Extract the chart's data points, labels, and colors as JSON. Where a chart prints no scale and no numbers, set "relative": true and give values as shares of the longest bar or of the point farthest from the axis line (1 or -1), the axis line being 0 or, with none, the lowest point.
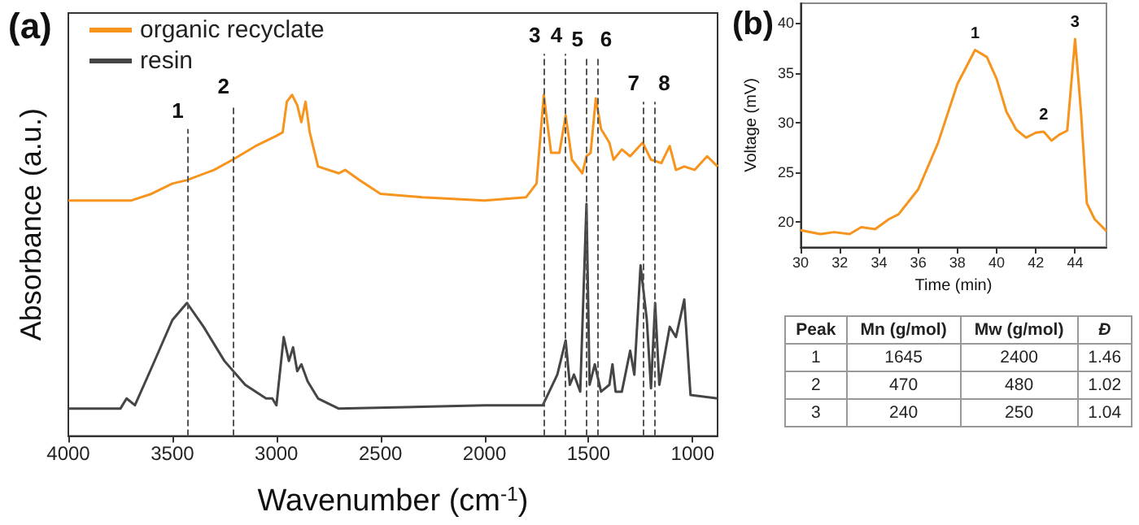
{
  "chart_data": [
    {
      "type": "line",
      "title": "(a)",
      "xlabel": "Wavenumber (cm$^{-1}$)",
      "ylabel": "Absorbance (a.u.)",
      "relative": true,
      "xlim": [
        4000,
        880
      ],
      "xticks": [
        4000,
        3500,
        3000,
        2500,
        2000,
        1500,
        1000
      ],
      "legend": "top left",
      "grid": false,
      "series": [
        {
          "name": "organic recyclate",
          "color": "#f7941d",
          "x": [
            4000,
            3700,
            3600,
            3500,
            3430,
            3300,
            3210,
            3100,
            3000,
            2970,
            2950,
            2925,
            2900,
            2880,
            2860,
            2840,
            2800,
            2700,
            2670,
            2600,
            2500,
            2300,
            2000,
            1800,
            1750,
            1715,
            1680,
            1640,
            1610,
            1580,
            1530,
            1510,
            1490,
            1465,
            1440,
            1400,
            1380,
            1340,
            1300,
            1240,
            1200,
            1150,
            1110,
            1080,
            1040,
            990,
            930,
            880
          ],
          "values": [
            0.69,
            0.69,
            0.71,
            0.74,
            0.75,
            0.78,
            0.81,
            0.85,
            0.88,
            0.89,
            0.98,
            1.0,
            0.97,
            0.92,
            0.98,
            0.89,
            0.79,
            0.77,
            0.78,
            0.75,
            0.71,
            0.7,
            0.69,
            0.7,
            0.74,
            1.0,
            0.83,
            0.83,
            0.94,
            0.81,
            0.77,
            0.82,
            0.83,
            0.99,
            0.9,
            0.86,
            0.81,
            0.84,
            0.82,
            0.86,
            0.81,
            0.8,
            0.85,
            0.78,
            0.79,
            0.78,
            0.82,
            0.79
          ]
        },
        {
          "name": "resin",
          "color": "#454545",
          "x": [
            4000,
            3750,
            3720,
            3680,
            3600,
            3500,
            3430,
            3350,
            3250,
            3150,
            3050,
            3020,
            3000,
            2965,
            2940,
            2920,
            2900,
            2880,
            2850,
            2800,
            2700,
            2000,
            1800,
            1720,
            1650,
            1610,
            1590,
            1570,
            1540,
            1510,
            1495,
            1470,
            1440,
            1400,
            1385,
            1370,
            1340,
            1300,
            1280,
            1250,
            1220,
            1200,
            1180,
            1160,
            1110,
            1080,
            1040,
            1010,
            880
          ],
          "values": [
            0.08,
            0.08,
            0.11,
            0.09,
            0.2,
            0.34,
            0.39,
            0.32,
            0.22,
            0.15,
            0.11,
            0.11,
            0.09,
            0.29,
            0.22,
            0.26,
            0.19,
            0.21,
            0.16,
            0.11,
            0.08,
            0.09,
            0.09,
            0.09,
            0.18,
            0.28,
            0.15,
            0.18,
            0.13,
            0.68,
            0.15,
            0.21,
            0.13,
            0.15,
            0.21,
            0.13,
            0.13,
            0.25,
            0.18,
            0.5,
            0.34,
            0.14,
            0.39,
            0.15,
            0.32,
            0.29,
            0.4,
            0.12,
            0.11
          ]
        }
      ],
      "ref_lines": [
        {
          "axis": "x",
          "value": 3430,
          "line_style": "dashed",
          "color": "#555555"
        },
        {
          "axis": "x",
          "value": 3210,
          "line_style": "dashed",
          "color": "#555555"
        },
        {
          "axis": "x",
          "value": 1715,
          "line_style": "dashed",
          "color": "#555555"
        },
        {
          "axis": "x",
          "value": 1610,
          "line_style": "dashed",
          "color": "#555555"
        },
        {
          "axis": "x",
          "value": 1510,
          "line_style": "dashed",
          "color": "#555555"
        },
        {
          "axis": "x",
          "value": 1460,
          "line_style": "dashed",
          "color": "#555555"
        },
        {
          "axis": "x",
          "value": 1240,
          "line_style": "dashed",
          "color": "#555555"
        },
        {
          "axis": "x",
          "value": 1180,
          "line_style": "dashed",
          "color": "#555555"
        }
      ],
      "annotations": [
        "1",
        "2",
        "3",
        "4",
        "5",
        "6",
        "7",
        "8"
      ]
    },
    {
      "type": "line",
      "title": "(b)",
      "xlabel": "Time (min)",
      "ylabel": "Voltage (mV)",
      "xlim": [
        30,
        45.6
      ],
      "xticks": [
        30,
        32,
        34,
        36,
        38,
        40,
        42,
        44
      ],
      "ylim": [
        17.5,
        42
      ],
      "yticks": [
        20,
        25,
        30,
        35,
        40
      ],
      "grid": false,
      "series": [
        {
          "color": "#f7941d",
          "x": [
            30,
            31,
            31.7,
            32.5,
            33.1,
            33.8,
            34.5,
            35,
            36,
            37,
            38,
            38.9,
            39.5,
            40,
            40.5,
            41,
            41.5,
            42,
            42.4,
            42.8,
            43.2,
            43.6,
            44,
            44.3,
            44.6,
            45,
            45.6
          ],
          "values": [
            19.2,
            18.8,
            19,
            18.8,
            19.5,
            19.3,
            20.3,
            20.8,
            23.3,
            27.9,
            33.9,
            37.3,
            36.6,
            34.4,
            31.1,
            29.3,
            28.5,
            29,
            29.1,
            28.2,
            28.8,
            29.2,
            38.4,
            31.1,
            21.9,
            20.3,
            19.1
          ]
        }
      ],
      "annotations": [
        {
          "text": "1",
          "x": 38.9,
          "y": 37.3
        },
        {
          "text": "2",
          "x": 42.4,
          "y": 29.1
        },
        {
          "text": "3",
          "x": 44,
          "y": 38.4
        }
      ]
    },
    {
      "type": "other",
      "categories": [
        "Peak",
        "Mn (g/mol)",
        "Mw (g/mol)",
        "Đ"
      ],
      "cell_labels": [
        [
          "1",
          "1645",
          "2400",
          "1.46"
        ],
        [
          "2",
          "470",
          "480",
          "1.02"
        ],
        [
          "3",
          "240",
          "250",
          "1.04"
        ]
      ]
    }
  ]
}
